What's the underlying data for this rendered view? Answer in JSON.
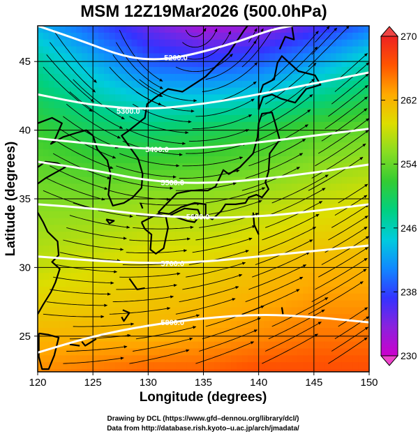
{
  "title": "MSM 12Z19Mar2026 (500.0hPa)",
  "credits": {
    "line1": "Drawing by DCL (https://www.gfd–dennou.org/library/dcl/)",
    "line2": "Data from http://database.rish.kyoto–u.ac.jp/arch/jmadata/"
  },
  "chart_data": {
    "type": "heatmap",
    "title": "MSM 12Z19Mar2026 (500.0hPa)",
    "xlabel": "Longitude (degrees)",
    "ylabel": "Latitude  (degrees)",
    "xlim": [
      120,
      150
    ],
    "ylim": [
      22.4,
      47.6
    ],
    "xticks": [
      120,
      125,
      130,
      135,
      140,
      145,
      150
    ],
    "yticks": [
      25,
      30,
      35,
      40,
      45
    ],
    "colorbar": {
      "min": 230,
      "max": 270,
      "ticks": [
        230,
        238,
        246,
        254,
        262,
        270
      ],
      "colors": [
        "#cc00cc",
        "#8a22dd",
        "#3333ff",
        "#1188ff",
        "#00ccdd",
        "#00d080",
        "#33cc33",
        "#88dd22",
        "#dddd00",
        "#ffaa00",
        "#ff5500",
        "#ee2222"
      ]
    },
    "temperature_field": {
      "series": [
        {
          "name": "lat 47.6",
          "values": [
            243,
            239,
            235,
            232,
            233,
            236,
            240
          ]
        },
        {
          "name": "lat 45",
          "values": [
            247,
            243,
            239,
            238,
            239,
            242,
            246
          ]
        },
        {
          "name": "lat 40",
          "values": [
            252,
            250,
            249,
            250,
            251,
            253,
            254
          ]
        },
        {
          "name": "lat 35",
          "values": [
            255,
            255,
            256,
            256,
            257,
            258,
            259
          ]
        },
        {
          "name": "lat 30",
          "values": [
            258,
            259,
            260,
            260,
            261,
            262,
            262
          ]
        },
        {
          "name": "lat 25",
          "values": [
            262,
            262,
            262,
            263,
            264,
            265,
            265
          ]
        },
        {
          "name": "lat 22.4",
          "values": [
            264,
            265,
            266,
            266,
            267,
            267,
            267
          ]
        }
      ],
      "x": [
        120,
        125,
        130,
        135,
        140,
        145,
        150
      ]
    },
    "height_contours": [
      {
        "label": "5200.0",
        "lon": [
          120,
          124,
          128,
          131,
          134,
          138,
          141,
          143
        ],
        "lat": [
          47.6,
          46.5,
          45.3,
          45.1,
          45.5,
          46.4,
          47.3,
          47.6
        ]
      },
      {
        "label": "5300.0",
        "lon": [
          120,
          125,
          130,
          135,
          140,
          145,
          150
        ],
        "lat": [
          42.6,
          41.8,
          41.5,
          41.9,
          42.6,
          43.4,
          44.2
        ]
      },
      {
        "label": "5400.0",
        "lon": [
          120,
          125,
          130,
          135,
          140,
          145,
          150
        ],
        "lat": [
          39.4,
          39.0,
          38.6,
          38.7,
          39.1,
          39.6,
          40.1
        ]
      },
      {
        "label": "5500.0",
        "lon": [
          120,
          125,
          130,
          135,
          140,
          145,
          150
        ],
        "lat": [
          37.7,
          37.1,
          36.3,
          36.1,
          36.4,
          36.9,
          37.5
        ]
      },
      {
        "label": "5600.0",
        "lon": [
          120,
          125,
          130,
          135,
          140,
          145,
          150
        ],
        "lat": [
          34.6,
          34.3,
          33.8,
          33.6,
          33.7,
          34.1,
          34.6
        ]
      },
      {
        "label": "5700.0",
        "lon": [
          120,
          125,
          130,
          135,
          140,
          145,
          150
        ],
        "lat": [
          30.8,
          30.5,
          30.3,
          30.4,
          30.8,
          31.2,
          31.6
        ]
      },
      {
        "label": "5800.0",
        "lon": [
          120,
          125,
          130,
          135,
          140,
          145,
          150
        ],
        "lat": [
          23.8,
          25.0,
          25.8,
          26.3,
          26.6,
          26.4,
          26.0
        ]
      }
    ],
    "contour_label_positions": [
      {
        "label": "5200.0",
        "lon": 132.5,
        "lat": 45.3
      },
      {
        "label": "5300.0",
        "lon": 128.2,
        "lat": 41.4
      },
      {
        "label": "5400.0",
        "lon": 130.8,
        "lat": 38.6
      },
      {
        "label": "5500.0",
        "lon": 132.2,
        "lat": 36.2
      },
      {
        "label": "5600.0",
        "lon": 134.5,
        "lat": 33.7
      },
      {
        "label": "5700.0",
        "lon": 132.2,
        "lat": 30.3
      },
      {
        "label": "5800.0",
        "lon": 132.2,
        "lat": 26.0
      }
    ],
    "low_center": {
      "lon": 134,
      "lat": 47.0
    },
    "grid": true,
    "coastlines": true,
    "streamlines": true
  }
}
